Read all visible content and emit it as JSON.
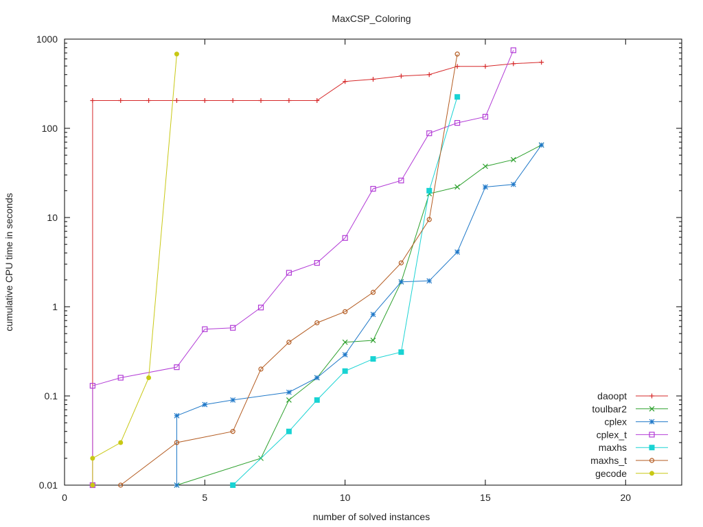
{
  "chart_data": {
    "type": "line",
    "title": "MaxCSP_Coloring",
    "xlabel": "number of solved instances",
    "ylabel": "cumulative CPU time in seconds",
    "xlim": [
      0,
      22
    ],
    "ylim": [
      0.01,
      1000
    ],
    "yscale": "log",
    "xticks": [
      0,
      5,
      10,
      15,
      20
    ],
    "xtick_labels": [
      "0",
      "5",
      "10",
      "15",
      "20"
    ],
    "yticks": [
      0.01,
      0.1,
      1,
      10,
      100,
      1000
    ],
    "ytick_labels": [
      "0.01",
      "0.1",
      "1",
      "10",
      "100",
      "1000"
    ],
    "legend_position": "bottom-right",
    "series": [
      {
        "name": "daoopt",
        "color": "#d62728",
        "marker": "plus",
        "points": [
          [
            1,
            0.01
          ],
          [
            1,
            205
          ],
          [
            2,
            205
          ],
          [
            3,
            205
          ],
          [
            4,
            205
          ],
          [
            5,
            205
          ],
          [
            6,
            205
          ],
          [
            7,
            205
          ],
          [
            8,
            205
          ],
          [
            9,
            205
          ],
          [
            10,
            335
          ],
          [
            11,
            355
          ],
          [
            12,
            385
          ],
          [
            13,
            400
          ],
          [
            14,
            495
          ],
          [
            15,
            495
          ],
          [
            16,
            530
          ],
          [
            17,
            550
          ]
        ]
      },
      {
        "name": "toulbar2",
        "color": "#2ca02c",
        "marker": "x",
        "points": [
          [
            4,
            0.01
          ],
          [
            7,
            0.02
          ],
          [
            8,
            0.09
          ],
          [
            9,
            0.16
          ],
          [
            10,
            0.4
          ],
          [
            11,
            0.42
          ],
          [
            12,
            1.9
          ],
          [
            13,
            18.5
          ],
          [
            14,
            22
          ],
          [
            15,
            37.5
          ],
          [
            16,
            44.5
          ],
          [
            17,
            65
          ]
        ]
      },
      {
        "name": "cplex",
        "color": "#1f78c8",
        "marker": "asterisk",
        "points": [
          [
            4,
            0.01
          ],
          [
            4,
            0.06
          ],
          [
            5,
            0.08
          ],
          [
            6,
            0.09
          ],
          [
            8,
            0.11
          ],
          [
            9,
            0.16
          ],
          [
            10,
            0.29
          ],
          [
            11,
            0.82
          ],
          [
            12,
            1.9
          ],
          [
            13,
            1.95
          ],
          [
            14,
            4.1
          ],
          [
            15,
            22
          ],
          [
            16,
            23.5
          ],
          [
            17,
            65
          ]
        ]
      },
      {
        "name": "cplex_t",
        "color": "#b23bd6",
        "marker": "square",
        "points": [
          [
            1,
            0.01
          ],
          [
            1,
            0.13
          ],
          [
            2,
            0.16
          ],
          [
            4,
            0.21
          ],
          [
            5,
            0.56
          ],
          [
            6,
            0.58
          ],
          [
            7,
            0.98
          ],
          [
            8,
            2.4
          ],
          [
            9,
            3.1
          ],
          [
            10,
            5.9
          ],
          [
            11,
            21
          ],
          [
            12,
            26
          ],
          [
            13,
            88
          ],
          [
            14,
            115
          ],
          [
            15,
            135
          ],
          [
            16,
            750
          ]
        ]
      },
      {
        "name": "maxhs",
        "color": "#19d3d3",
        "marker": "filled-square",
        "points": [
          [
            6,
            0.01
          ],
          [
            8,
            0.04
          ],
          [
            9,
            0.09
          ],
          [
            10,
            0.19
          ],
          [
            11,
            0.26
          ],
          [
            12,
            0.31
          ],
          [
            13,
            20
          ],
          [
            14,
            225
          ]
        ]
      },
      {
        "name": "maxhs_t",
        "color": "#b35a1f",
        "marker": "circle",
        "points": [
          [
            2,
            0.01
          ],
          [
            4,
            0.03
          ],
          [
            6,
            0.04
          ],
          [
            7,
            0.2
          ],
          [
            8,
            0.4
          ],
          [
            9,
            0.66
          ],
          [
            10,
            0.88
          ],
          [
            11,
            1.45
          ],
          [
            12,
            3.1
          ],
          [
            13,
            9.5
          ],
          [
            14,
            680
          ]
        ]
      },
      {
        "name": "gecode",
        "color": "#c8c814",
        "marker": "filled-circle",
        "points": [
          [
            1,
            0.01
          ],
          [
            1,
            0.02
          ],
          [
            2,
            0.03
          ],
          [
            3,
            0.16
          ],
          [
            4,
            680
          ]
        ]
      }
    ]
  }
}
